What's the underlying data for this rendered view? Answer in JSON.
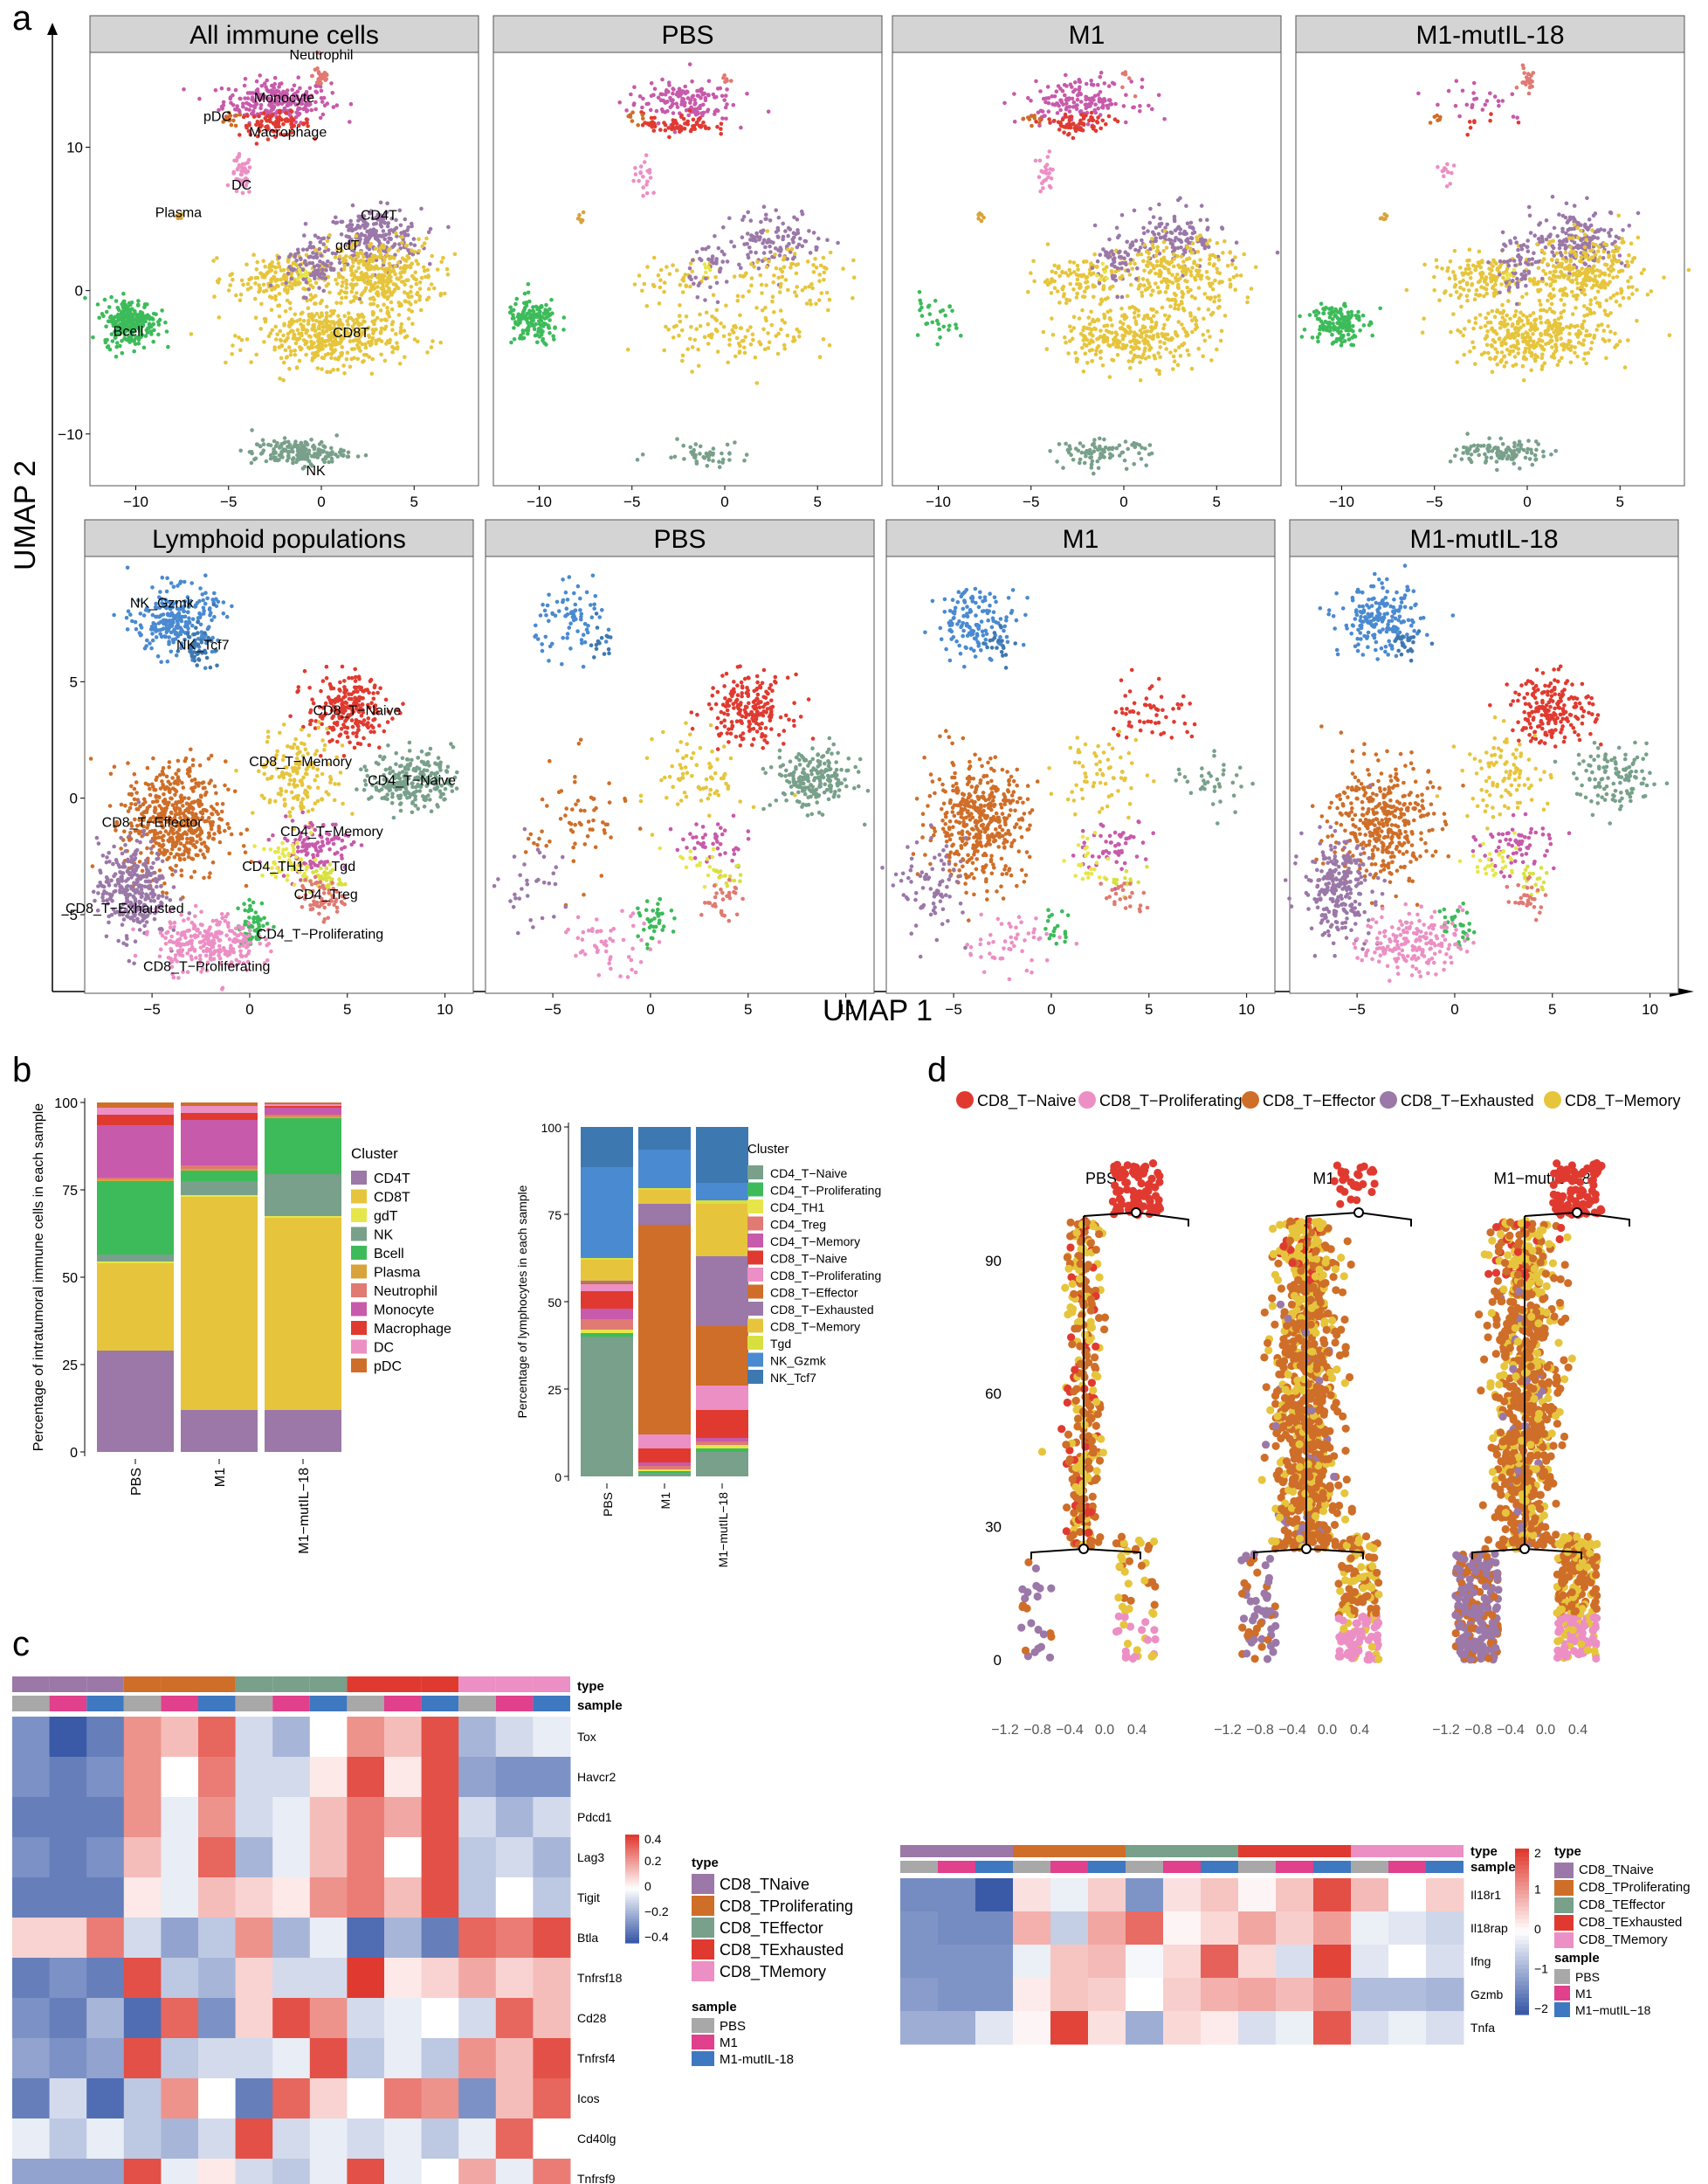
{
  "colors": {
    "CD4T": "#9b78a8",
    "CD8T": "#e6c53c",
    "gdT": "#e6e64a",
    "NK": "#78a08a",
    "Bcell": "#3dbb5a",
    "Plasma": "#d9a33b",
    "Neutrophil": "#e07a72",
    "Monocyte": "#c75aaa",
    "Macrophage": "#e03a30",
    "DC": "#ec8fc4",
    "pDC": "#cf6e28",
    "CD4_T-Naive": "#78a08a",
    "CD4_T-Proliferating": "#3dbb5a",
    "CD4_TH1": "#e6e64a",
    "CD4_Treg": "#e07a72",
    "CD4_T-Memory": "#c75aaa",
    "CD8_T-Naive": "#e03a30",
    "CD8_T-Proliferating": "#ec8fc4",
    "CD8_T-Effector": "#cf6e28",
    "CD8_T-Exhausted": "#9b78a8",
    "CD8_T-Memory": "#e6c53c",
    "Tgd": "#d8e040",
    "NK_Gzmk": "#4a8ad0",
    "NK_Tcf7": "#3e78b0",
    "heat_high": "#e03a30",
    "heat_mid": "#ffffff",
    "heat_low": "#3a5aa8",
    "PBS": "#a8a8a8",
    "M1": "#e0408c",
    "M1-mutIL-18": "#3e78c0",
    "panel_header": "#d4d4d4"
  },
  "panel_labels": {
    "a": "a",
    "b": "b",
    "c": "c",
    "d": "d"
  },
  "panel_a": {
    "y_axis_title": "UMAP 2",
    "x_axis_title": "UMAP 1",
    "row1_titles": [
      "All immune cells",
      "PBS",
      "M1",
      "M1-mutIL-18"
    ],
    "row2_titles": [
      "Lymphoid populations",
      "PBS",
      "M1",
      "M1-mutIL-18"
    ],
    "row1_x_ticks": [
      "−10",
      "−5",
      "0",
      "5"
    ],
    "row1_y_ticks": [
      "10",
      "0",
      "−10"
    ],
    "row2_x_ticks": [
      "−5",
      "0",
      "5",
      "10"
    ],
    "row2_y_ticks": [
      "5",
      "0",
      "−5"
    ],
    "row1_cluster_labels": [
      "Neutrophil",
      "pDC",
      "Monocyte",
      "Macrophage",
      "DC",
      "Plasma",
      "gdT",
      "CD4T",
      "Bcell",
      "CD8T",
      "NK"
    ],
    "row2_cluster_labels": [
      "NK_Gzmk",
      "NK_Tcf7",
      "CD8_T−Naive",
      "CD8_T−Memory",
      "CD4_T−Naive",
      "CD8_T−Effector",
      "CD4_T−Memory",
      "CD4_TH1",
      "Tgd",
      "CD4_Treg",
      "CD8_T−Exhausted",
      "CD4_T−Proliferating",
      "CD8_T−Proliferating"
    ]
  },
  "chart_data": [
    {
      "type": "bar",
      "stacked": true,
      "title": "",
      "ylabel": "Percentage of  intratumoral immune cells in each sample",
      "xlabel": "",
      "categories": [
        "PBS",
        "M1",
        "M1−mutIL−18"
      ],
      "ylim": [
        0,
        100
      ],
      "y_ticks": [
        "0",
        "25",
        "50",
        "75",
        "100"
      ],
      "legend_title": "Cluster",
      "series": [
        {
          "name": "CD4T",
          "values": [
            29,
            12,
            12
          ]
        },
        {
          "name": "CD8T",
          "values": [
            25,
            61,
            55
          ]
        },
        {
          "name": "gdT",
          "values": [
            0.5,
            0.5,
            0.5
          ]
        },
        {
          "name": "NK",
          "values": [
            2,
            4,
            12
          ]
        },
        {
          "name": "Bcell",
          "values": [
            21,
            3,
            16
          ]
        },
        {
          "name": "Plasma",
          "values": [
            0.5,
            0.5,
            0.5
          ]
        },
        {
          "name": "Neutrophil",
          "values": [
            0.5,
            1.0,
            0.5
          ]
        },
        {
          "name": "Monocyte",
          "values": [
            15,
            13,
            2
          ]
        },
        {
          "name": "Macrophage",
          "values": [
            3,
            2,
            0.5
          ]
        },
        {
          "name": "DC",
          "values": [
            2,
            2,
            0.5
          ]
        },
        {
          "name": "pDC",
          "values": [
            1.5,
            1.0,
            0.5
          ]
        }
      ]
    },
    {
      "type": "bar",
      "stacked": true,
      "title": "",
      "ylabel": "Percentage of  lymphocytes in each sample",
      "xlabel": "",
      "categories": [
        "PBS",
        "M1",
        "M1−mutIL−18"
      ],
      "ylim": [
        0,
        100
      ],
      "y_ticks": [
        "0",
        "25",
        "50",
        "75",
        "100"
      ],
      "legend_title": "Cluster",
      "series": [
        {
          "name": "CD4_T−Naive",
          "values": [
            40,
            1,
            7
          ]
        },
        {
          "name": "CD4_T−Proliferating",
          "values": [
            1,
            0.5,
            1
          ]
        },
        {
          "name": "CD4_TH1",
          "values": [
            1,
            0.5,
            1
          ]
        },
        {
          "name": "CD4_Treg",
          "values": [
            3,
            1,
            1
          ]
        },
        {
          "name": "CD4_T−Memory",
          "values": [
            3,
            1,
            1
          ]
        },
        {
          "name": "CD8_T−Naive",
          "values": [
            5,
            4,
            8
          ]
        },
        {
          "name": "CD8_T−Proliferating",
          "values": [
            2,
            4,
            7
          ]
        },
        {
          "name": "CD8_T−Effector",
          "values": [
            0.5,
            60,
            17
          ]
        },
        {
          "name": "CD8_T−Exhausted",
          "values": [
            0.5,
            6,
            20
          ]
        },
        {
          "name": "CD8_T−Memory",
          "values": [
            6,
            4,
            15
          ]
        },
        {
          "name": "Tgd",
          "values": [
            0.5,
            0.5,
            1
          ]
        },
        {
          "name": "NK_Gzmk",
          "values": [
            26,
            11,
            5
          ]
        },
        {
          "name": "NK_Tcf7",
          "values": [
            11.5,
            6.5,
            16
          ]
        }
      ]
    },
    {
      "type": "heatmap",
      "title": "",
      "row_labels": [
        "Tox",
        "Havcr2",
        "Pdcd1",
        "Lag3",
        "Tigit",
        "Btla",
        "Tnfrsf18",
        "Cd28",
        "Tnfrsf4",
        "Icos",
        "Cd40lg",
        "Tnfrsf9"
      ],
      "column_types": [
        "CD8_TNaive",
        "CD8_TNaive",
        "CD8_TNaive",
        "CD8_TProliferating",
        "CD8_TProliferating",
        "CD8_TProliferating",
        "CD8_TEffector",
        "CD8_TEffector",
        "CD8_TEffector",
        "CD8_TExhausted",
        "CD8_TExhausted",
        "CD8_TExhausted",
        "CD8_TMemory",
        "CD8_TMemory",
        "CD8_TMemory"
      ],
      "column_samples": [
        "PBS",
        "M1",
        "M1-mutIL-18",
        "PBS",
        "M1",
        "M1-mutIL-18",
        "PBS",
        "M1",
        "M1-mutIL-18",
        "PBS",
        "M1",
        "M1-mutIL-18",
        "PBS",
        "M1",
        "M1-mutIL-18"
      ],
      "values": [
        [
          -0.3,
          -0.45,
          -0.35,
          0.25,
          0.15,
          0.35,
          -0.1,
          -0.2,
          0.0,
          0.25,
          0.15,
          0.4,
          -0.2,
          -0.1,
          -0.05
        ],
        [
          -0.3,
          -0.35,
          -0.3,
          0.25,
          0.0,
          0.3,
          -0.1,
          -0.1,
          0.05,
          0.4,
          0.05,
          0.4,
          -0.25,
          -0.3,
          -0.3
        ],
        [
          -0.35,
          -0.35,
          -0.35,
          0.25,
          -0.05,
          0.25,
          -0.1,
          -0.05,
          0.15,
          0.3,
          0.2,
          0.4,
          -0.1,
          -0.2,
          -0.1
        ],
        [
          -0.3,
          -0.35,
          -0.3,
          0.15,
          -0.05,
          0.35,
          -0.2,
          -0.05,
          0.15,
          0.3,
          0.0,
          0.4,
          -0.15,
          -0.1,
          -0.2
        ],
        [
          -0.35,
          -0.35,
          -0.35,
          0.05,
          -0.05,
          0.15,
          0.1,
          0.05,
          0.25,
          0.3,
          0.15,
          0.4,
          -0.15,
          0.0,
          -0.15
        ],
        [
          0.1,
          0.1,
          0.3,
          -0.1,
          -0.25,
          -0.15,
          0.25,
          -0.2,
          -0.05,
          -0.4,
          -0.2,
          -0.35,
          0.35,
          0.3,
          0.4
        ],
        [
          -0.35,
          -0.3,
          -0.35,
          0.4,
          -0.15,
          -0.2,
          0.1,
          -0.1,
          -0.1,
          0.45,
          0.05,
          0.1,
          0.2,
          0.1,
          0.15
        ],
        [
          -0.3,
          -0.35,
          -0.2,
          -0.4,
          0.35,
          -0.3,
          0.1,
          0.4,
          0.25,
          -0.1,
          -0.05,
          0.0,
          -0.1,
          0.35,
          0.15
        ],
        [
          -0.25,
          -0.3,
          -0.25,
          0.4,
          -0.15,
          -0.1,
          -0.1,
          -0.05,
          0.4,
          -0.15,
          -0.05,
          -0.15,
          0.25,
          0.15,
          0.4
        ],
        [
          -0.35,
          -0.1,
          -0.4,
          -0.15,
          0.25,
          0.0,
          -0.35,
          0.35,
          0.1,
          0.0,
          0.3,
          0.25,
          -0.3,
          0.15,
          0.35
        ],
        [
          -0.05,
          -0.15,
          -0.05,
          -0.15,
          -0.2,
          -0.1,
          0.4,
          -0.1,
          -0.05,
          -0.1,
          -0.05,
          -0.15,
          -0.05,
          0.35,
          0.0
        ],
        [
          -0.25,
          -0.25,
          -0.25,
          0.4,
          -0.05,
          0.05,
          -0.1,
          -0.15,
          -0.05,
          0.4,
          -0.05,
          0.0,
          0.2,
          -0.05,
          0.3
        ]
      ],
      "scale_ticks": [
        "0.4",
        "0.2",
        "0",
        "−0.2",
        "−0.4"
      ],
      "annotation_labels": {
        "type": "type",
        "sample": "sample"
      },
      "legend_type_title": "type",
      "legend_types": [
        "CD8_TNaive",
        "CD8_TProliferating",
        "CD8_TEffector",
        "CD8_TExhausted",
        "CD8_TMemory"
      ],
      "legend_sample_title": "sample",
      "legend_samples": [
        "PBS",
        "M1",
        "M1-mutIL-18"
      ]
    },
    {
      "type": "scatter",
      "title": "",
      "legend_items": [
        "CD8_T−Naive",
        "CD8_T−Proliferating",
        "CD8_T−Effector",
        "CD8_T−Exhausted",
        "CD8_T−Memory"
      ],
      "facets": [
        "PBS",
        "M1",
        "M1−mutIL−18"
      ],
      "y_ticks": [
        "90",
        "60",
        "30",
        "0"
      ],
      "x_ticks": [
        "−1.2",
        "−0.8",
        "−0.4",
        "0.0",
        "0.4"
      ],
      "ylim": [
        0,
        105
      ],
      "xlim": [
        -1.4,
        0.5
      ],
      "branch_y": [
        25,
        100
      ]
    },
    {
      "type": "heatmap",
      "title": "",
      "row_labels": [
        "Il18r1",
        "Il18rap",
        "Ifng",
        "Gzmb",
        "Tnfa"
      ],
      "column_types": [
        "CD8_TNaive",
        "CD8_TNaive",
        "CD8_TNaive",
        "CD8_TProliferating",
        "CD8_TProliferating",
        "CD8_TProliferating",
        "CD8_TEffector",
        "CD8_TEffector",
        "CD8_TEffector",
        "CD8_TExhausted",
        "CD8_TExhausted",
        "CD8_TExhausted",
        "CD8_TMemory",
        "CD8_TMemory",
        "CD8_TMemory"
      ],
      "column_samples": [
        "PBS",
        "M1",
        "M1-mutIL-18",
        "PBS",
        "M1",
        "M1-mutIL-18",
        "PBS",
        "M1",
        "M1-mutIL-18",
        "PBS",
        "M1",
        "M1-mutIL-18",
        "PBS",
        "M1",
        "M1-mutIL-18"
      ],
      "values": [
        [
          -1.4,
          -1.4,
          -2.0,
          0.3,
          -0.2,
          0.5,
          -1.3,
          0.3,
          0.6,
          0.1,
          0.6,
          1.8,
          0.7,
          0.0,
          0.5
        ],
        [
          -1.3,
          -1.4,
          -1.4,
          0.8,
          -0.6,
          0.9,
          1.5,
          0.1,
          0.4,
          0.9,
          0.5,
          1.0,
          -0.2,
          -0.3,
          -0.5
        ],
        [
          -1.3,
          -1.3,
          -1.3,
          -0.2,
          0.6,
          0.7,
          -0.1,
          0.4,
          1.6,
          0.4,
          -0.4,
          1.9,
          -0.3,
          0.0,
          -0.4
        ],
        [
          -1.2,
          -1.3,
          -1.3,
          0.2,
          0.6,
          0.5,
          0.0,
          0.5,
          0.8,
          0.9,
          0.7,
          1.1,
          -0.8,
          -0.8,
          -0.9
        ],
        [
          -1.0,
          -1.0,
          -0.3,
          0.1,
          1.9,
          0.3,
          -1.0,
          0.4,
          0.2,
          -0.4,
          -0.2,
          1.7,
          -0.4,
          -0.2,
          -0.4
        ]
      ],
      "scale_ticks": [
        "2",
        "1",
        "0",
        "−1",
        "−2"
      ],
      "annotation_labels": {
        "type": "type",
        "sample": "sample"
      },
      "legend_type_title": "type",
      "legend_types": [
        "CD8_TNaive",
        "CD8_TProliferating",
        "CD8_TEffector",
        "CD8_TExhausted",
        "CD8_TMemory"
      ],
      "legend_sample_title": "sample",
      "legend_samples": [
        "PBS",
        "M1",
        "M1−mutIL−18"
      ]
    }
  ]
}
